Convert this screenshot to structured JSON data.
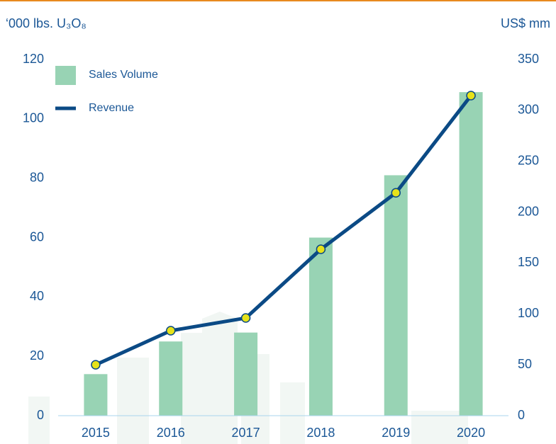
{
  "chart_data": {
    "type": "bar",
    "y_label": "‘000 lbs. U₃O₈",
    "y2_label": "US$ mm",
    "categories": [
      "2015",
      "2016",
      "2017",
      "2018",
      "2019",
      "2020"
    ],
    "series": [
      {
        "name": "Sales Volume",
        "color": "#98d3b4",
        "values": [
          14,
          25,
          28,
          60,
          81,
          109
        ]
      },
      {
        "name": "Revenue",
        "color": "#0b4a85",
        "marker_color": "#e6e21a",
        "axis": "y2",
        "values": [
          50,
          83.5,
          96,
          163.5,
          219,
          314.5
        ]
      }
    ],
    "ylim": [
      0,
      120
    ],
    "yticks": [
      0,
      20,
      40,
      60,
      80,
      100,
      120
    ],
    "y2lim": [
      0,
      350
    ],
    "y2ticks": [
      0,
      50,
      100,
      150,
      200,
      250,
      300,
      350
    ],
    "grid": false
  }
}
